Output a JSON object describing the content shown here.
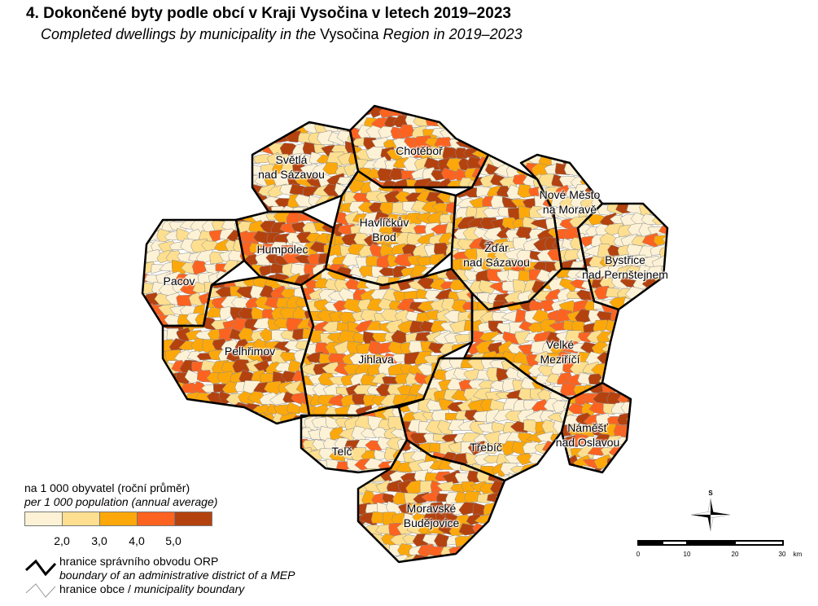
{
  "title": "4. Dokončené byty podle obcí v Kraji Vysočina v letech 2019–2023",
  "subtitle": {
    "part1": "Completed dwellings by municipality in the ",
    "region": "Vysočina",
    "part2": " Region in 2019–2023"
  },
  "districts": [
    {
      "id": "chotebor",
      "label": "Chotěboř"
    },
    {
      "id": "svetla",
      "label": "Světlá\nnad Sázavou"
    },
    {
      "id": "humpolec",
      "label": "Humpolec"
    },
    {
      "id": "havlickuv-brod",
      "label": "Havlíčkův\nBrod"
    },
    {
      "id": "pacov",
      "label": "Pacov"
    },
    {
      "id": "pelhrimov",
      "label": "Pelhřimov"
    },
    {
      "id": "jihlava",
      "label": "Jihlava"
    },
    {
      "id": "zdar",
      "label": "Žďár\nnad Sázavou"
    },
    {
      "id": "nove-mesto",
      "label": "Nové Město\nna Moravě"
    },
    {
      "id": "bystrice",
      "label": "Bystřice\nnad Pernštejnem"
    },
    {
      "id": "velke-mezirici",
      "label": "Velké\nMeziříčí"
    },
    {
      "id": "trebic",
      "label": "Třebíč"
    },
    {
      "id": "namest",
      "label": "Náměšť\nnad Oslavou"
    },
    {
      "id": "telc",
      "label": "Telč"
    },
    {
      "id": "moravske-budejovice",
      "label": "Moravské\nBudějovice"
    }
  ],
  "legend": {
    "title_cz": "na 1 000 obyvatel (roční průměr)",
    "title_en": "per 1 000 population (annual average)",
    "classes": [
      {
        "color": "#fdf2d6"
      },
      {
        "color": "#fddf8f"
      },
      {
        "color": "#fda80a"
      },
      {
        "color": "#fd6320"
      },
      {
        "color": "#b4420f"
      }
    ],
    "breaks": [
      "2,0",
      "3,0",
      "4,0",
      "5,0"
    ],
    "orp_boundary_cz": "hranice správního obvodu ORP",
    "orp_boundary_en": "boundary of an administrative district of a MEP",
    "municipality_boundary_cz": "hranice obce / ",
    "municipality_boundary_en": "municipality boundary"
  },
  "compass": {
    "label": "S"
  },
  "scale_bar": {
    "ticks": [
      "0",
      "10",
      "20",
      "30"
    ],
    "unit": "km"
  }
}
